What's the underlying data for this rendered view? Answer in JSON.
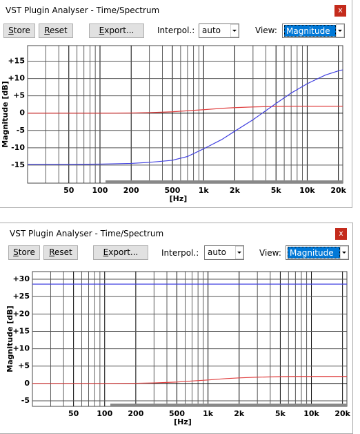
{
  "windows": [
    {
      "title": "VST Plugin Analyser - Time/Spectrum",
      "close": "x",
      "buttons": [
        "Store",
        "Reset",
        "Export..."
      ],
      "interpol_label": "Interpol.:",
      "interpol_value": "auto",
      "view_label": "View:",
      "view_value": "Magnitude"
    },
    {
      "title": "VST Plugin Analyser - Time/Spectrum",
      "close": "x",
      "buttons": [
        "Store",
        "Reset",
        "Export..."
      ],
      "interpol_label": "Interpol.:",
      "interpol_value": "auto",
      "view_label": "View:",
      "view_value": "Magnitude"
    }
  ],
  "chart_data": [
    {
      "type": "line",
      "ylabel": "Magnitude [dB]",
      "xlabel": "[Hz]",
      "log_x": true,
      "grid": true,
      "xlim": [
        20,
        22050
      ],
      "ylim": [
        -20.2,
        19.5
      ],
      "xticks": [
        50,
        100,
        200,
        500,
        {
          "value": 1000,
          "label": "1k"
        },
        {
          "value": 2000,
          "label": "2k"
        },
        {
          "value": 5000,
          "label": "5k"
        },
        {
          "value": 10000,
          "label": "10k"
        },
        {
          "value": 20000,
          "label": "20k"
        }
      ],
      "x_minor_grid": [
        30,
        40,
        60,
        70,
        80,
        90,
        300,
        400,
        600,
        700,
        800,
        900,
        3000,
        4000,
        6000,
        7000,
        8000,
        9000
      ],
      "yticks": [
        {
          "value": 15,
          "label": "+15"
        },
        {
          "value": 10,
          "label": "+10"
        },
        {
          "value": 5,
          "label": "+5"
        },
        0,
        -5,
        -10,
        -15
      ],
      "x": [
        20,
        50,
        100,
        200,
        300,
        500,
        700,
        1000,
        1500,
        2000,
        3000,
        5000,
        7000,
        10000,
        15000,
        20000,
        22050
      ],
      "series": [
        {
          "color": "#e04040",
          "values": [
            0,
            0,
            0,
            0.05,
            0.15,
            0.4,
            0.7,
            1.0,
            1.4,
            1.6,
            1.8,
            1.95,
            2.0,
            2.0,
            2.0,
            2.0,
            2.0
          ]
        },
        {
          "color": "#4040e0",
          "values": [
            -14.8,
            -14.8,
            -14.7,
            -14.5,
            -14.2,
            -13.6,
            -12.5,
            -10.3,
            -7.6,
            -5.2,
            -1.9,
            2.8,
            5.8,
            8.5,
            11.0,
            12.2,
            12.5
          ]
        }
      ]
    },
    {
      "type": "line",
      "ylabel": "Magnitude [dB]",
      "xlabel": "[Hz]",
      "log_x": true,
      "grid": true,
      "xlim": [
        20,
        22050
      ],
      "ylim": [
        -6.6,
        32.2
      ],
      "xticks": [
        50,
        100,
        200,
        500,
        {
          "value": 1000,
          "label": "1k"
        },
        {
          "value": 2000,
          "label": "2k"
        },
        {
          "value": 5000,
          "label": "5k"
        },
        {
          "value": 10000,
          "label": "10k"
        },
        {
          "value": 20000,
          "label": "20k"
        }
      ],
      "x_minor_grid": [
        30,
        40,
        60,
        70,
        80,
        90,
        300,
        400,
        600,
        700,
        800,
        900,
        3000,
        4000,
        6000,
        7000,
        8000,
        9000
      ],
      "yticks": [
        {
          "value": 30,
          "label": "+30"
        },
        {
          "value": 25,
          "label": "+25"
        },
        {
          "value": 20,
          "label": "+20"
        },
        {
          "value": 15,
          "label": "+15"
        },
        {
          "value": 10,
          "label": "+10"
        },
        {
          "value": 5,
          "label": "+5"
        },
        0,
        -5
      ],
      "x": [
        20,
        50,
        100,
        200,
        300,
        500,
        700,
        1000,
        1500,
        2000,
        3000,
        5000,
        7000,
        10000,
        15000,
        20000,
        22050
      ],
      "series": [
        {
          "color": "#e04040",
          "values": [
            0,
            0,
            0,
            0.05,
            0.15,
            0.4,
            0.7,
            1.0,
            1.4,
            1.6,
            1.8,
            1.95,
            2.0,
            2.0,
            2.0,
            2.0,
            2.0
          ]
        },
        {
          "color": "#4040e0",
          "values": [
            28.6,
            28.6,
            28.6,
            28.6,
            28.6,
            28.6,
            28.6,
            28.6,
            28.6,
            28.6,
            28.6,
            28.6,
            28.6,
            28.6,
            28.6,
            28.6,
            28.6
          ]
        }
      ]
    }
  ]
}
